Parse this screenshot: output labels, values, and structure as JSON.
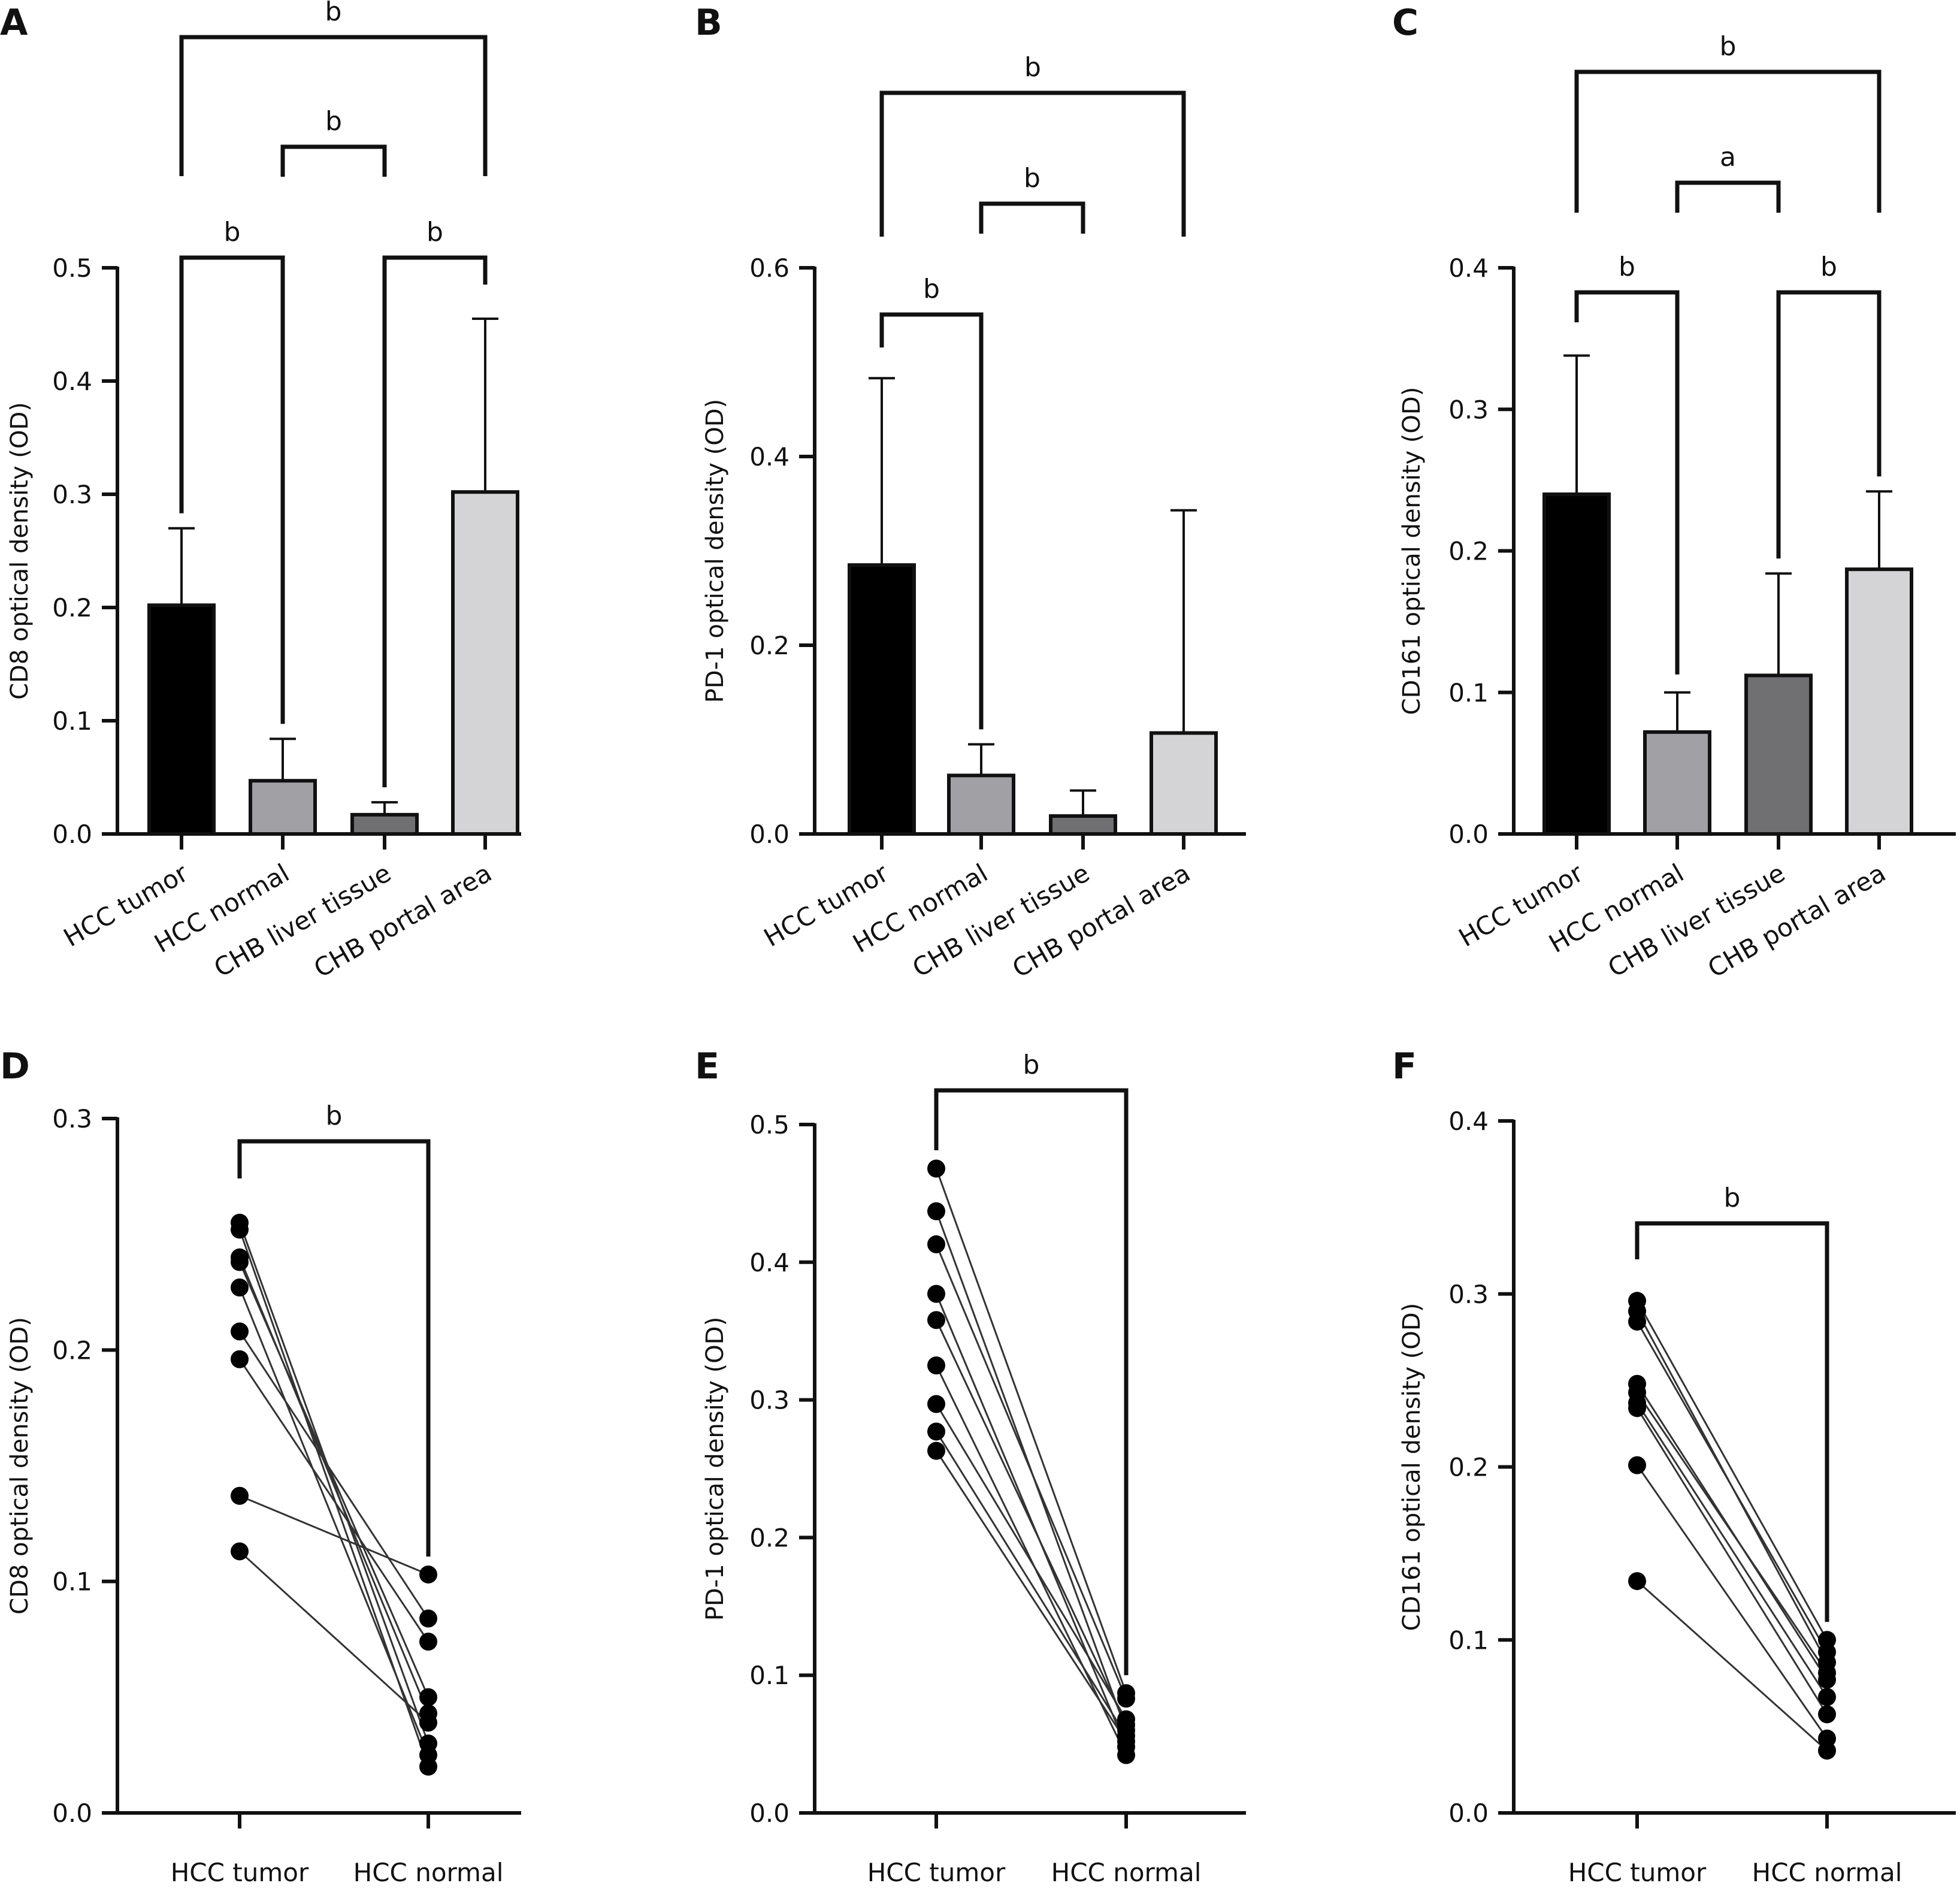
{
  "chart_data": [
    {
      "panel": "A",
      "type": "bar",
      "ylabel": "CD8 optical density (OD)",
      "ylim": [
        0,
        0.5
      ],
      "yticks": [
        "0.0",
        "0.1",
        "0.2",
        "0.3",
        "0.4",
        "0.5"
      ],
      "categories": [
        "HCC tumor",
        "HCC normal",
        "CHB liver tissue",
        "CHB portal area"
      ],
      "values": [
        0.202,
        0.047,
        0.017,
        0.302
      ],
      "errors": [
        0.068,
        0.037,
        0.011,
        0.153
      ],
      "colors": [
        "#000000",
        "#a1a1a5",
        "#707073",
        "#d4d4d6"
      ],
      "brackets": [
        {
          "from": 0,
          "to": 1,
          "label": "b"
        },
        {
          "from": 2,
          "to": 3,
          "label": "b"
        },
        {
          "from": 1,
          "to": 2,
          "label": "b"
        },
        {
          "from": 0,
          "to": 3,
          "label": "b"
        }
      ]
    },
    {
      "panel": "B",
      "type": "bar",
      "ylabel": "PD-1 optical density (OD)",
      "ylim": [
        0,
        0.6
      ],
      "yticks": [
        "0.0",
        "0.2",
        "0.4",
        "0.6"
      ],
      "categories": [
        "HCC tumor",
        "HCC normal",
        "CHB liver tissue",
        "CHB portal area"
      ],
      "values": [
        0.285,
        0.062,
        0.019,
        0.107
      ],
      "errors": [
        0.198,
        0.033,
        0.027,
        0.236
      ],
      "colors": [
        "#000000",
        "#a1a1a5",
        "#707073",
        "#d4d4d6"
      ],
      "brackets": [
        {
          "from": 0,
          "to": 1,
          "label": "b"
        },
        {
          "from": 1,
          "to": 2,
          "label": "b"
        },
        {
          "from": 0,
          "to": 3,
          "label": "b"
        }
      ]
    },
    {
      "panel": "C",
      "type": "bar",
      "ylabel": "CD161 optical density (OD)",
      "ylim": [
        0,
        0.4
      ],
      "yticks": [
        "0.0",
        "0.1",
        "0.2",
        "0.3",
        "0.4"
      ],
      "categories": [
        "HCC tumor",
        "HCC normal",
        "CHB liver tissue",
        "CHB portal area"
      ],
      "values": [
        0.24,
        0.072,
        0.112,
        0.187
      ],
      "errors": [
        0.098,
        0.028,
        0.072,
        0.055
      ],
      "colors": [
        "#000000",
        "#a1a1a5",
        "#707073",
        "#d4d4d6"
      ],
      "brackets": [
        {
          "from": 0,
          "to": 1,
          "label": "b"
        },
        {
          "from": 2,
          "to": 3,
          "label": "b"
        },
        {
          "from": 1,
          "to": 2,
          "label": "a"
        },
        {
          "from": 0,
          "to": 3,
          "label": "b"
        }
      ]
    },
    {
      "panel": "D",
      "type": "scatter",
      "ylabel": "CD8 optical density (OD)",
      "ylim": [
        0,
        0.3
      ],
      "yticks": [
        "0.0",
        "0.1",
        "0.2",
        "0.3"
      ],
      "categories": [
        "HCC tumor",
        "HCC normal"
      ],
      "pairs": [
        [
          0.255,
          0.03
        ],
        [
          0.252,
          0.02
        ],
        [
          0.24,
          0.043
        ],
        [
          0.238,
          0.05
        ],
        [
          0.227,
          0.025
        ],
        [
          0.208,
          0.084
        ],
        [
          0.196,
          0.074
        ],
        [
          0.137,
          0.103
        ],
        [
          0.113,
          0.039
        ]
      ],
      "brackets": [
        {
          "from": 0,
          "to": 1,
          "label": "b"
        }
      ]
    },
    {
      "panel": "E",
      "type": "scatter",
      "ylabel": "PD-1 optical density (OD)",
      "ylim": [
        0,
        0.5
      ],
      "yticks": [
        "0.0",
        "0.1",
        "0.2",
        "0.3",
        "0.4",
        "0.5"
      ],
      "categories": [
        "HCC tumor",
        "HCC normal"
      ],
      "pairs": [
        [
          0.468,
          0.087
        ],
        [
          0.437,
          0.06
        ],
        [
          0.413,
          0.083
        ],
        [
          0.377,
          0.048
        ],
        [
          0.358,
          0.064
        ],
        [
          0.325,
          0.042
        ],
        [
          0.297,
          0.068
        ],
        [
          0.277,
          0.056
        ],
        [
          0.263,
          0.052
        ]
      ],
      "brackets": [
        {
          "from": 0,
          "to": 1,
          "label": "b"
        }
      ]
    },
    {
      "panel": "F",
      "type": "scatter",
      "ylabel": "CD161 optical density (OD)",
      "ylim": [
        0,
        0.4
      ],
      "yticks": [
        "0.0",
        "0.1",
        "0.2",
        "0.3",
        "0.4"
      ],
      "categories": [
        "HCC tumor",
        "HCC normal"
      ],
      "pairs": [
        [
          0.296,
          0.1
        ],
        [
          0.29,
          0.087
        ],
        [
          0.284,
          0.093
        ],
        [
          0.248,
          0.077
        ],
        [
          0.243,
          0.081
        ],
        [
          0.237,
          0.067
        ],
        [
          0.234,
          0.057
        ],
        [
          0.201,
          0.043
        ],
        [
          0.134,
          0.036
        ]
      ],
      "brackets": [
        {
          "from": 0,
          "to": 1,
          "label": "b"
        }
      ]
    }
  ]
}
